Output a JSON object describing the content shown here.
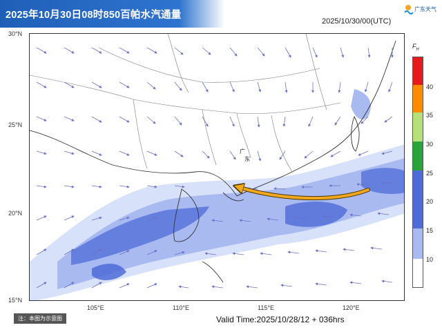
{
  "header": {
    "title": "2025年10月30日08时850百帕水汽通量",
    "timestamp": "2025/10/30/00(UTC)",
    "logo_text": "广东天气"
  },
  "map": {
    "latitude_labels": [
      "30°N",
      "25°N",
      "20°N",
      "15°N"
    ],
    "longitude_labels": [
      "105°E",
      "110°E",
      "115°E",
      "120°E"
    ],
    "province_label_1": "广",
    "province_label_2": "东"
  },
  "legend": {
    "unit_label": "F",
    "unit_sub": "H",
    "levels": [
      "40",
      "35",
      "30",
      "25",
      "20",
      "15",
      "10"
    ],
    "colors": {
      "c40": "#e41a1c",
      "c35": "#ff8c00",
      "c30": "#b6e07a",
      "c25": "#2aa43a",
      "c20": "#4f6bd8",
      "c15": "#a9baf0",
      "c10": "#d8e1fa"
    }
  },
  "footer": {
    "note": "注：本图为示意图",
    "valid_time": "Valid Time:2025/10/28/12 + 036hrs"
  }
}
